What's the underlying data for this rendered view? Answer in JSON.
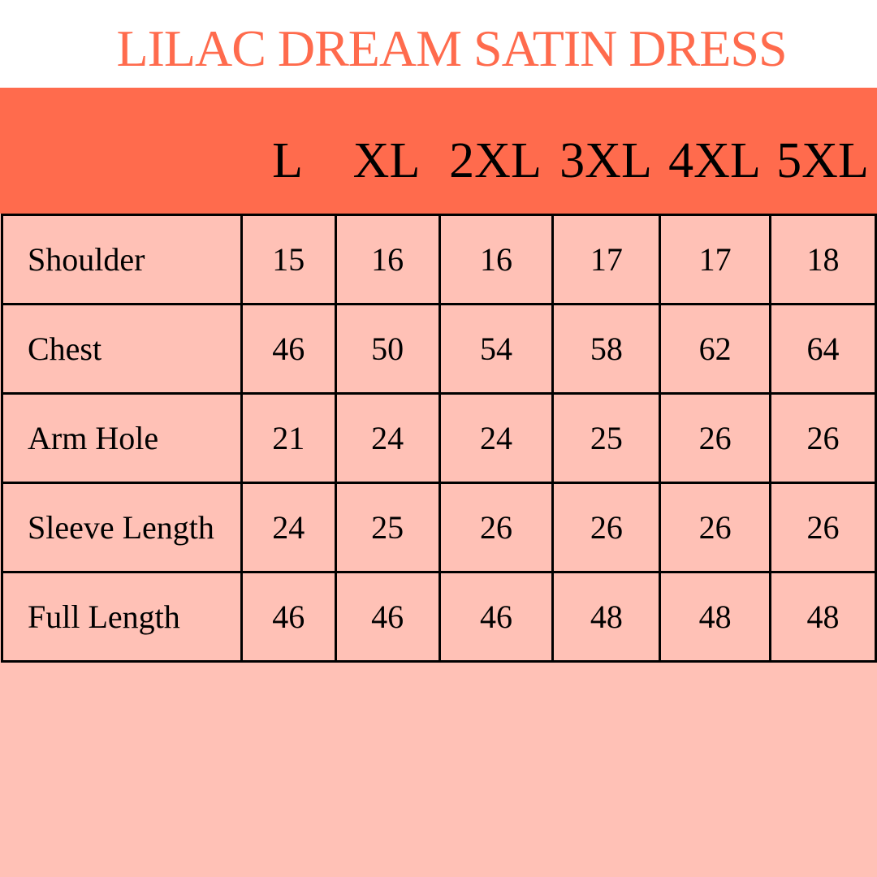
{
  "title": "LILAC DREAM SATIN DRESS",
  "colors": {
    "accent": "#FF6B4D",
    "body": "#FFC1B6",
    "border": "#000000"
  },
  "sizes": [
    "L",
    "XL",
    "2XL",
    "3XL",
    "4XL",
    "5XL"
  ],
  "rows": [
    {
      "label": "Shoulder",
      "values": [
        "15",
        "16",
        "16",
        "17",
        "17",
        "18"
      ]
    },
    {
      "label": "Chest",
      "values": [
        "46",
        "50",
        "54",
        "58",
        "62",
        "64"
      ]
    },
    {
      "label": "Arm Hole",
      "values": [
        "21",
        "24",
        "24",
        "25",
        "26",
        "26"
      ]
    },
    {
      "label": "Sleeve Length",
      "values": [
        "24",
        "25",
        "26",
        "26",
        "26",
        "26"
      ]
    },
    {
      "label": "Full Length",
      "values": [
        "46",
        "46",
        "46",
        "48",
        "48",
        "48"
      ]
    }
  ]
}
